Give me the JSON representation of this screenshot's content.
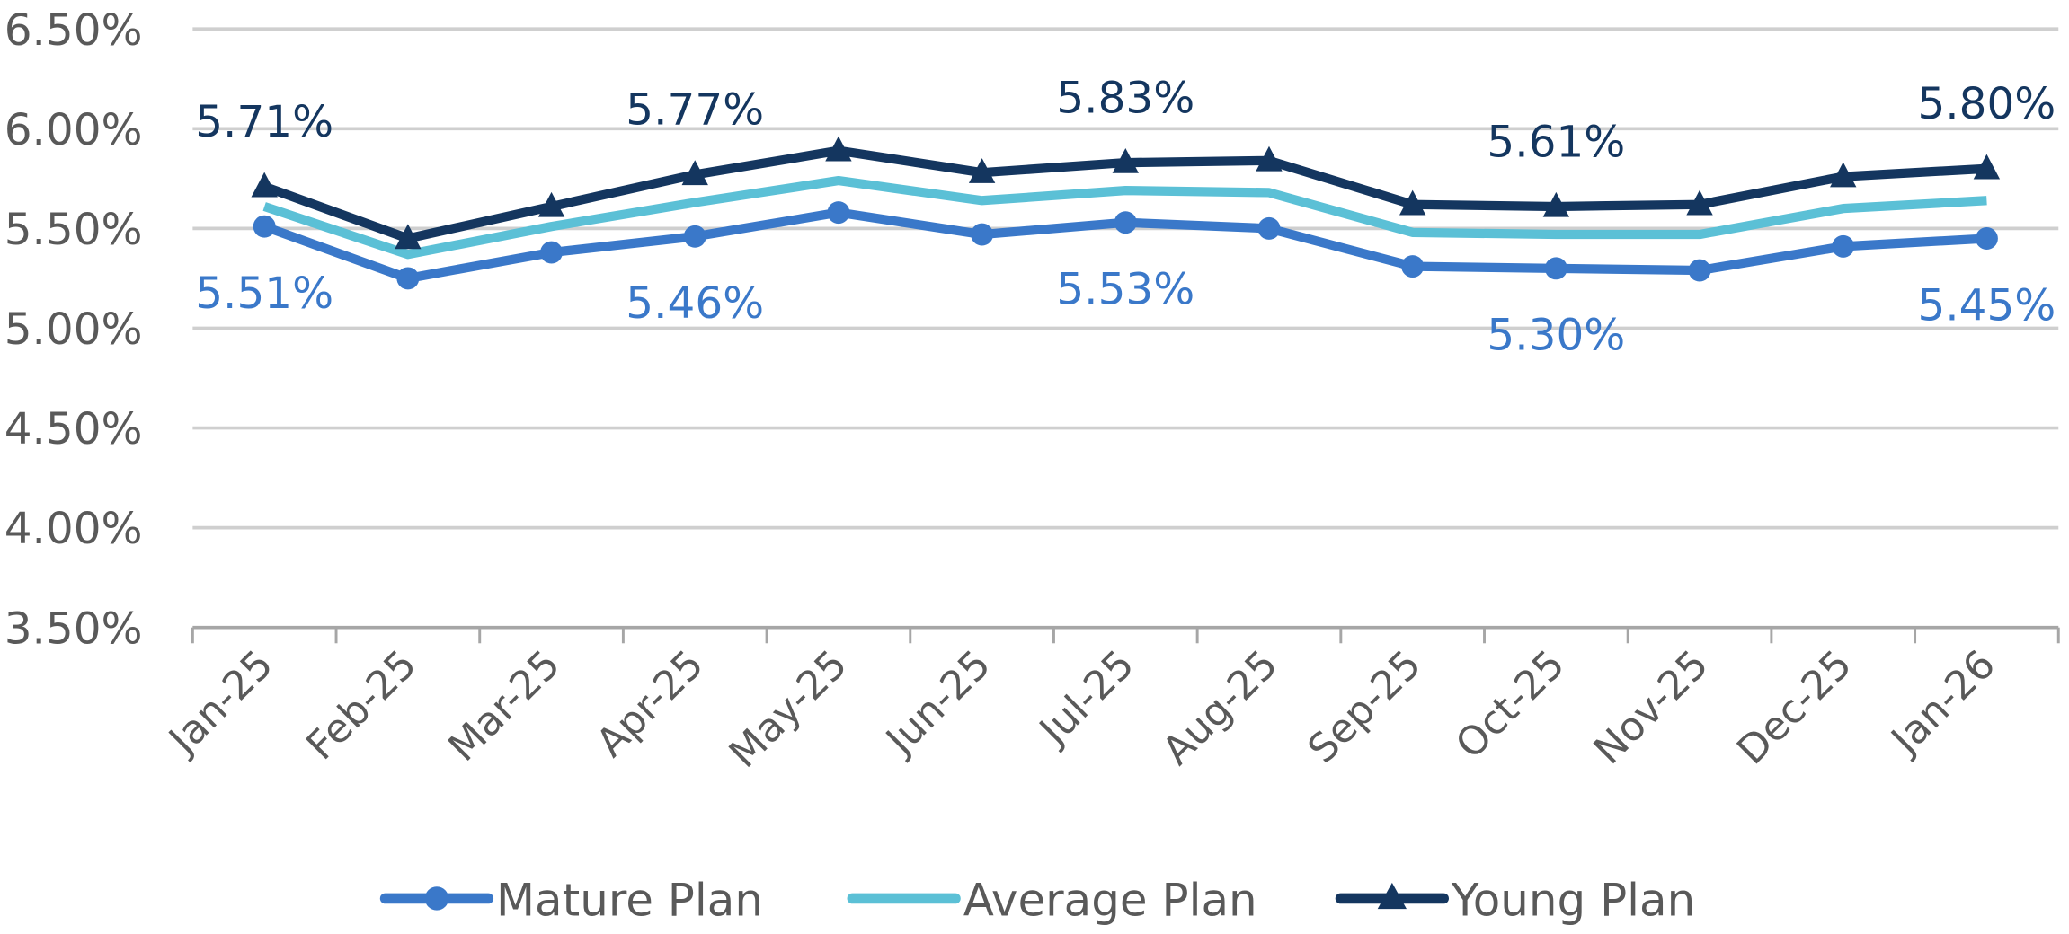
{
  "chart_data": {
    "type": "line",
    "title": "",
    "xlabel": "",
    "ylabel": "",
    "ylim": [
      3.5,
      6.5
    ],
    "yticks": [
      "6.50%",
      "6.00%",
      "5.50%",
      "5.00%",
      "4.50%",
      "4.00%",
      "3.50%"
    ],
    "ytick_values": [
      6.5,
      6.0,
      5.5,
      5.0,
      4.5,
      4.0,
      3.5
    ],
    "grid": true,
    "legend_placement": "bottom",
    "categories": [
      "Jan-25",
      "Feb-25",
      "Mar-25",
      "Apr-25",
      "May-25",
      "Jun-25",
      "Jul-25",
      "Aug-25",
      "Sep-25",
      "Oct-25",
      "Nov-25",
      "Dec-25",
      "Jan-26"
    ],
    "series": [
      {
        "name": "Mature Plan",
        "color": "#3A78C9",
        "marker": "circle",
        "values": [
          5.51,
          5.25,
          5.38,
          5.46,
          5.58,
          5.47,
          5.53,
          5.5,
          5.31,
          5.3,
          5.29,
          5.41,
          5.45
        ],
        "data_labels": [
          {
            "index": 0,
            "text": "5.51%"
          },
          {
            "index": 3,
            "text": "5.46%"
          },
          {
            "index": 6,
            "text": "5.53%"
          },
          {
            "index": 9,
            "text": "5.30%"
          },
          {
            "index": 12,
            "text": "5.45%"
          }
        ],
        "label_position": "below"
      },
      {
        "name": "Average Plan",
        "color": "#5BC0D6",
        "marker": "none",
        "values": [
          5.61,
          5.37,
          5.51,
          5.63,
          5.74,
          5.64,
          5.69,
          5.68,
          5.48,
          5.47,
          5.47,
          5.6,
          5.64
        ],
        "data_labels": [],
        "label_position": "none"
      },
      {
        "name": "Young Plan",
        "color": "#14365F",
        "marker": "triangle",
        "values": [
          5.71,
          5.45,
          5.61,
          5.77,
          5.89,
          5.78,
          5.83,
          5.84,
          5.62,
          5.61,
          5.62,
          5.76,
          5.8
        ],
        "data_labels": [
          {
            "index": 0,
            "text": "5.71%"
          },
          {
            "index": 3,
            "text": "5.77%"
          },
          {
            "index": 6,
            "text": "5.83%"
          },
          {
            "index": 9,
            "text": "5.61%"
          },
          {
            "index": 12,
            "text": "5.80%"
          }
        ],
        "label_position": "above"
      }
    ]
  }
}
